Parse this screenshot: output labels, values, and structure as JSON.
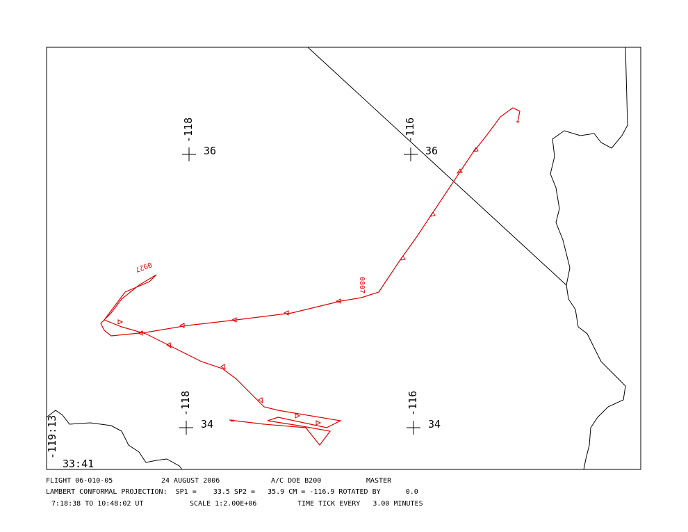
{
  "graticule": [
    {
      "lon": "-118",
      "lat": "36"
    },
    {
      "lon": "-116",
      "lat": "36"
    },
    {
      "lon": "-118",
      "lat": "34"
    },
    {
      "lon": "-116",
      "lat": "34"
    }
  ],
  "corner": {
    "lon": "-119:13",
    "lat": "33:41"
  },
  "time_labels": [
    "0927",
    "0807"
  ],
  "footer": {
    "flight": "FLIGHT 06-010-05",
    "date": "24 AUGUST 2006",
    "aircraft": "A/C DOE B200",
    "mode": "MASTER",
    "projection": "LAMBERT CONFORMAL PROJECTION:  SP1 =    33.5 SP2 =   35.9 CM = -116.9 ROTATED BY      0.0",
    "time_range": "7:18:38 TO 10:48:02 UT",
    "scale": "SCALE 1:2.00E+06",
    "time_tick": "TIME TICK EVERY   3.00 MINUTES"
  }
}
